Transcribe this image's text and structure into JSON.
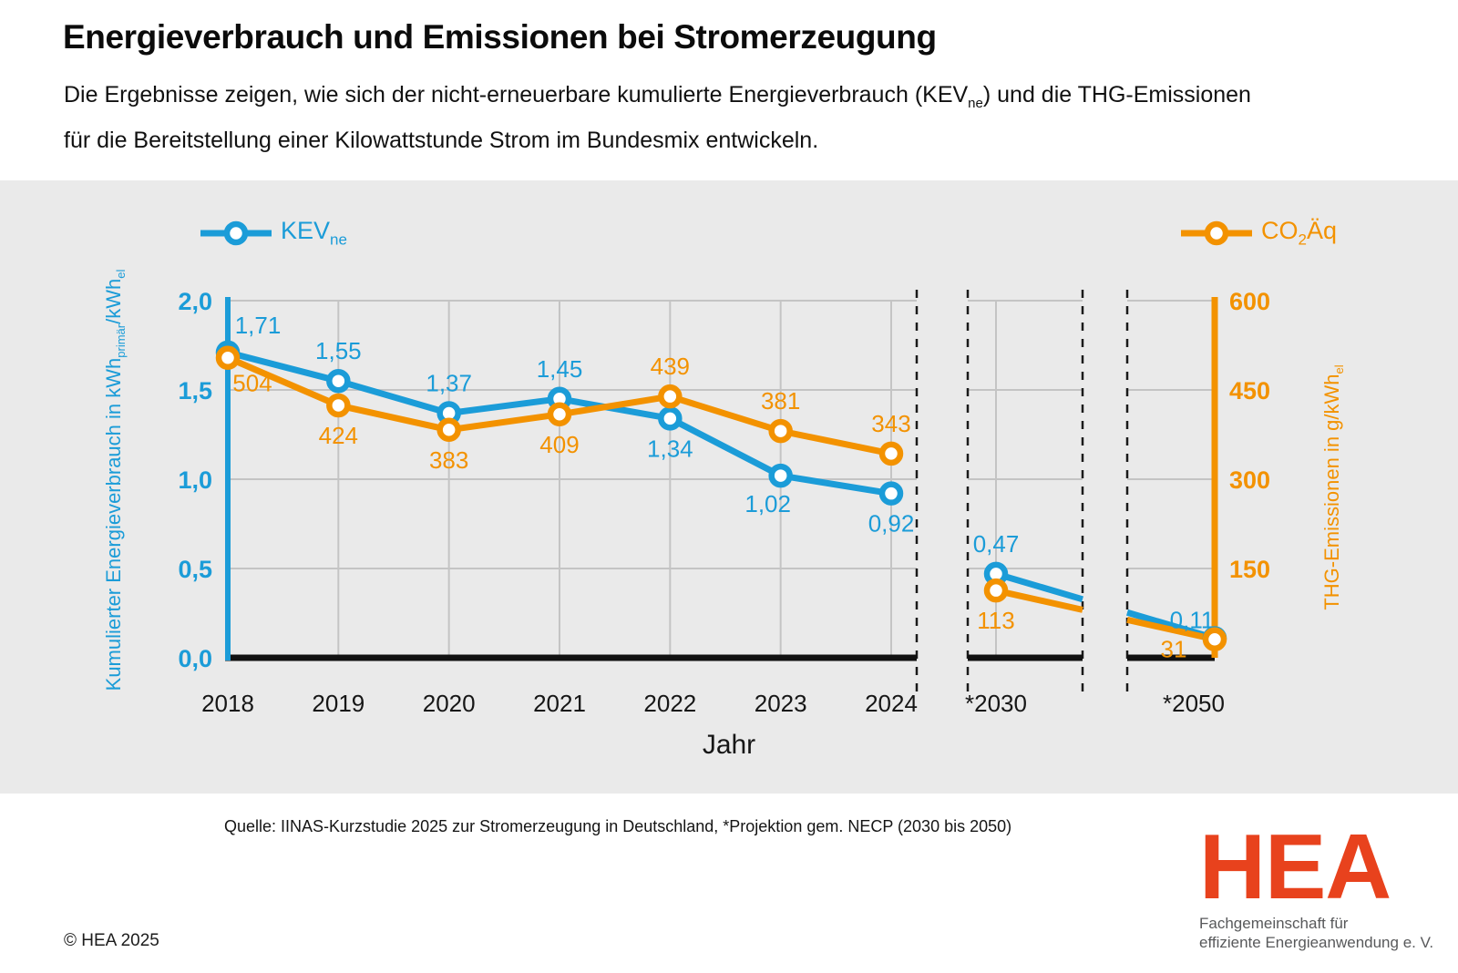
{
  "header": {
    "title": "Energieverbrauch und Emissionen bei Stromerzeugung",
    "subtitle_part1": "Die Ergebnisse zeigen, wie sich der nicht-erneuerbare kumulierte Energieverbrauch (KEV",
    "subtitle_sub": "ne",
    "subtitle_part2": ") und die THG-Emissionen",
    "subtitle_line2": "für die Bereitstellung einer Kilowattstunde Strom im Bundesmix entwickeln."
  },
  "legend": {
    "kev": {
      "text": "KEV",
      "sub": "ne"
    },
    "co2": {
      "text": "CO",
      "sub": "2",
      "text2": "Äq"
    }
  },
  "colors": {
    "blue": "#1b9cd8",
    "orange": "#f39200",
    "grid": "#c4c4c4",
    "axis_black": "#111111",
    "band_gray": "#eaeaea",
    "hea_red": "#e8421d"
  },
  "chart_data": {
    "type": "line",
    "x_categories": [
      "2018",
      "2019",
      "2020",
      "2021",
      "2022",
      "2023",
      "2024",
      "*2030",
      "*2050"
    ],
    "xlabel": "Jahr",
    "axis_breaks_after_index": [
      6,
      7
    ],
    "grid": true,
    "left_axis": {
      "title_main": "Kumulierter Energieverbrauch in kWh",
      "title_sub1": "primär",
      "title_mid": "/kWh",
      "title_sub2": "el",
      "tick_labels": [
        "2,0",
        "1,5",
        "1,0",
        "0,5",
        "0,0"
      ],
      "tick_values": [
        2.0,
        1.5,
        1.0,
        0.5,
        0.0
      ],
      "range": [
        0,
        2.0
      ],
      "color": "#1b9cd8"
    },
    "right_axis": {
      "title_main": "THG-Emissionen in g/kWh",
      "title_sub": "el",
      "tick_labels": [
        "600",
        "450",
        "300",
        "150"
      ],
      "tick_values": [
        600,
        450,
        300,
        150
      ],
      "range": [
        0,
        600
      ],
      "color": "#f39200"
    },
    "series": [
      {
        "name": "KEVne",
        "axis": "left",
        "color": "#1b9cd8",
        "values": [
          1.71,
          1.55,
          1.37,
          1.45,
          1.34,
          1.02,
          0.92,
          0.47,
          0.11
        ],
        "labels": [
          "1,71",
          "1,55",
          "1,37",
          "1,45",
          "1,34",
          "1,02",
          "0,92",
          "0,47",
          "0,11"
        ],
        "label_placement": [
          "above-right",
          "above",
          "above",
          "above",
          "below",
          "below-left",
          "below",
          "above",
          "left-above"
        ]
      },
      {
        "name": "CO2Äq",
        "axis": "right",
        "color": "#f39200",
        "values": [
          504,
          424,
          383,
          409,
          439,
          381,
          343,
          113,
          31
        ],
        "labels": [
          "504",
          "424",
          "383",
          "409",
          "439",
          "381",
          "343",
          "113",
          "31"
        ],
        "label_placement": [
          "below-right",
          "below",
          "below",
          "below",
          "above",
          "above",
          "above",
          "below",
          "left-below"
        ]
      }
    ],
    "source": "Quelle: IINAS-Kurzstudie 2025 zur Stromerzeugung in Deutschland, *Projektion gem. NECP (2030 bis 2050)"
  },
  "footer": {
    "copyright": "© HEA 2025",
    "logo_text": "HEA",
    "logo_tagline_1": "Fachgemeinschaft für",
    "logo_tagline_2": "effiziente Energieanwendung e. V."
  }
}
